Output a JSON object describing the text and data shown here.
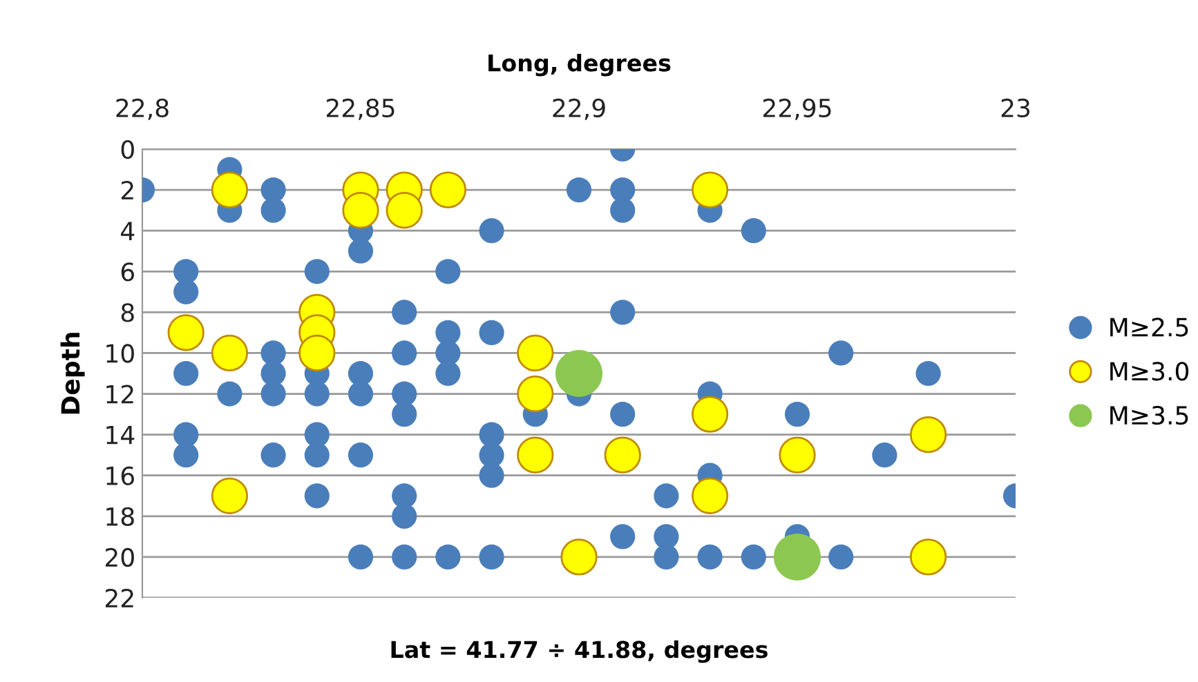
{
  "chart_data": {
    "type": "scatter",
    "xlabel": "Long, degrees",
    "ylabel": "Depth",
    "annotations": [
      "Lat = 41.77 ÷ 41.88, degrees"
    ],
    "xlim": [
      22.8,
      23.0
    ],
    "xticks": [
      {
        "value": 22.8,
        "label": "22,8"
      },
      {
        "value": 22.85,
        "label": "22,85"
      },
      {
        "value": 22.9,
        "label": "22,9"
      },
      {
        "value": 22.95,
        "label": "22,95"
      },
      {
        "value": 23.0,
        "label": "23"
      }
    ],
    "ylim": [
      22,
      0
    ],
    "yticks": [
      0,
      2,
      4,
      6,
      8,
      10,
      12,
      14,
      16,
      18,
      20,
      22
    ],
    "grid": "y",
    "legend": "right",
    "marker": "circle",
    "series": [
      {
        "name": "M≥2.5",
        "color": "#4a7ebb",
        "x": [
          22.91,
          22.82,
          22.8,
          22.83,
          22.9,
          22.91,
          22.82,
          22.83,
          22.91,
          22.93,
          22.85,
          22.88,
          22.94,
          22.85,
          22.81,
          22.84,
          22.87,
          22.81,
          22.86,
          22.91,
          22.87,
          22.88,
          22.83,
          22.86,
          22.87,
          22.96,
          22.81,
          22.83,
          22.84,
          22.85,
          22.87,
          22.98,
          22.82,
          22.83,
          22.84,
          22.85,
          22.86,
          22.9,
          22.93,
          22.86,
          22.89,
          22.91,
          22.95,
          22.81,
          22.84,
          22.88,
          22.81,
          22.83,
          22.84,
          22.85,
          22.88,
          22.97,
          22.88,
          22.93,
          22.84,
          22.86,
          22.92,
          23.0,
          22.86,
          22.91,
          22.92,
          22.95,
          22.85,
          22.86,
          22.87,
          22.88,
          22.92,
          22.93,
          22.94,
          22.96
        ],
        "values": [
          0,
          1,
          2,
          2,
          2,
          2,
          3,
          3,
          3,
          3,
          4,
          4,
          4,
          5,
          6,
          6,
          6,
          7,
          8,
          8,
          9,
          9,
          10,
          10,
          10,
          10,
          11,
          11,
          11,
          11,
          11,
          11,
          12,
          12,
          12,
          12,
          12,
          12,
          12,
          13,
          13,
          13,
          13,
          14,
          14,
          14,
          15,
          15,
          15,
          15,
          15,
          15,
          16,
          16,
          17,
          17,
          17,
          17,
          18,
          19,
          19,
          19,
          20,
          20,
          20,
          20,
          20,
          20,
          20,
          20
        ]
      },
      {
        "name": "M≥3.0",
        "color": "#ffff00",
        "x": [
          22.82,
          22.85,
          22.86,
          22.87,
          22.93,
          22.85,
          22.86,
          22.84,
          22.81,
          22.84,
          22.82,
          22.84,
          22.89,
          22.89,
          22.93,
          22.98,
          22.89,
          22.91,
          22.95,
          22.82,
          22.93,
          22.9,
          22.98
        ],
        "values": [
          2,
          2,
          2,
          2,
          2,
          3,
          3,
          8,
          9,
          9,
          10,
          10,
          10,
          12,
          13,
          14,
          15,
          15,
          15,
          17,
          17,
          20,
          20
        ]
      },
      {
        "name": "M≥3.5",
        "color": "#8cc751",
        "x": [
          22.9,
          22.95
        ],
        "values": [
          11,
          20
        ]
      }
    ]
  }
}
